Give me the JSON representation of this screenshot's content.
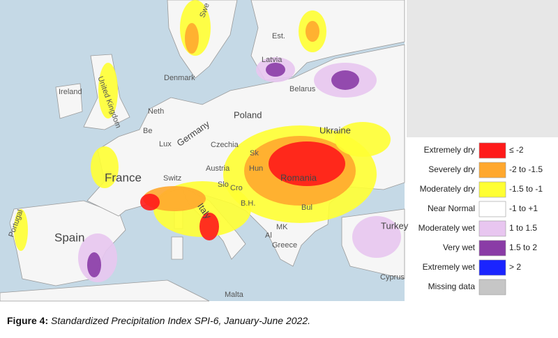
{
  "map": {
    "labels": [
      "Swe",
      "Est.",
      "Latvia",
      "Belarus",
      "Denmark",
      "Ireland",
      "United Kingdom",
      "Neth",
      "Be",
      "Lux",
      "Germany",
      "Poland",
      "Czechia",
      "Ukraine",
      "France",
      "Switz",
      "Austria",
      "Sk",
      "Hun",
      "Slo",
      "Cro",
      "Romania",
      "B.H.",
      "Bul",
      "Italy",
      "MK",
      "Al",
      "Greece",
      "Spain",
      "Portugal",
      "Turkey",
      "Cyprus",
      "Malta"
    ],
    "legend": [
      {
        "name": "Extremely dry",
        "color": "#ff1a1a",
        "range": "≤ -2"
      },
      {
        "name": "Severely dry",
        "color": "#ffa82e",
        "range": "-2 to -1.5"
      },
      {
        "name": "Moderately dry",
        "color": "#ffff33",
        "range": "-1.5 to -1"
      },
      {
        "name": "Near Normal",
        "color": "#ffffff",
        "range": "-1 to +1"
      },
      {
        "name": "Moderately wet",
        "color": "#e8c6f0",
        "range": "1 to 1.5"
      },
      {
        "name": "Very wet",
        "color": "#8a3ca6",
        "range": "1.5 to 2"
      },
      {
        "name": "Extremely wet",
        "color": "#1a24ff",
        "range": "> 2"
      },
      {
        "name": "Missing data",
        "color": "#c6c6c6"
      }
    ]
  },
  "caption": {
    "label": "Figure 4:",
    "text": "Standardized Precipitation Index SPI-6, January-June 2022."
  }
}
